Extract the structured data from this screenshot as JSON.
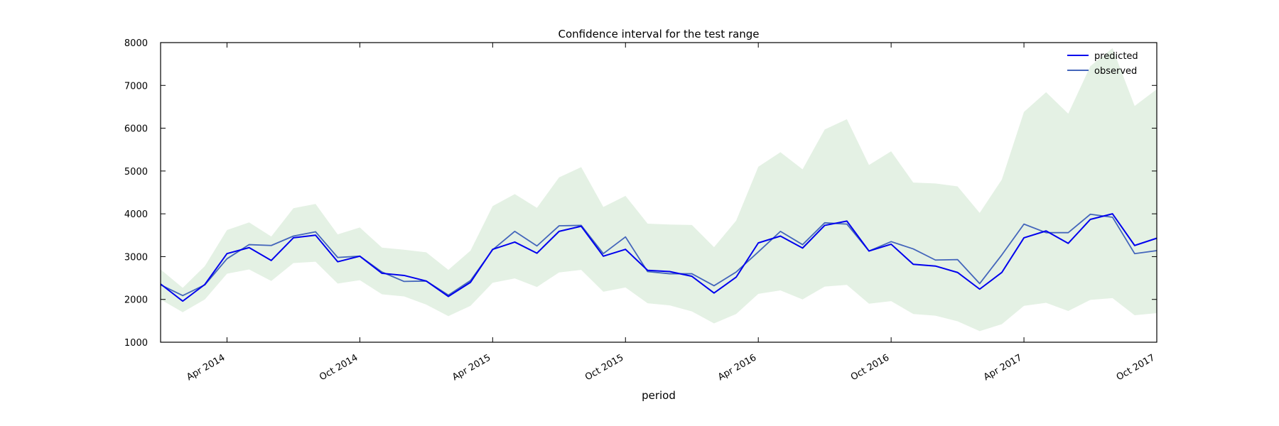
{
  "chart_data": {
    "type": "line",
    "title": "Confidence interval for the test range",
    "xlabel": "period",
    "ylabel": "",
    "ylim": [
      1000,
      8000
    ],
    "yticks": [
      1000,
      2000,
      3000,
      4000,
      5000,
      6000,
      7000,
      8000
    ],
    "xticks": [
      "Apr 2014",
      "Oct 2014",
      "Apr 2015",
      "Oct 2015",
      "Apr 2016",
      "Oct 2016",
      "Apr 2017",
      "Oct 2017"
    ],
    "x": [
      "2014-01",
      "2014-02",
      "2014-03",
      "2014-04",
      "2014-05",
      "2014-06",
      "2014-07",
      "2014-08",
      "2014-09",
      "2014-10",
      "2014-11",
      "2014-12",
      "2015-01",
      "2015-02",
      "2015-03",
      "2015-04",
      "2015-05",
      "2015-06",
      "2015-07",
      "2015-08",
      "2015-09",
      "2015-10",
      "2015-11",
      "2015-12",
      "2016-01",
      "2016-02",
      "2016-03",
      "2016-04",
      "2016-05",
      "2016-06",
      "2016-07",
      "2016-08",
      "2016-09",
      "2016-10",
      "2016-11",
      "2016-12",
      "2017-01",
      "2017-02",
      "2017-03",
      "2017-04",
      "2017-05",
      "2017-06",
      "2017-07",
      "2017-08",
      "2017-09",
      "2017-10"
    ],
    "legend_position": "top-right",
    "grid": false,
    "series": [
      {
        "name": "predicted",
        "color": "#0000ee",
        "values": [
          2360,
          1960,
          2350,
          3070,
          3210,
          2910,
          3440,
          3500,
          2880,
          3010,
          2610,
          2560,
          2430,
          2070,
          2400,
          3170,
          3340,
          3080,
          3590,
          3710,
          3010,
          3170,
          2680,
          2650,
          2540,
          2150,
          2520,
          3320,
          3480,
          3200,
          3730,
          3830,
          3130,
          3290,
          2820,
          2780,
          2630,
          2240,
          2630,
          3440,
          3600,
          3310,
          3870,
          4000,
          3260,
          3430
        ]
      },
      {
        "name": "observed",
        "color": "#4466bb",
        "values": [
          2340,
          2090,
          2340,
          2950,
          3280,
          3260,
          3480,
          3580,
          2980,
          3010,
          2640,
          2420,
          2430,
          2100,
          2440,
          3160,
          3590,
          3250,
          3720,
          3730,
          3070,
          3460,
          2650,
          2600,
          2600,
          2320,
          2640,
          3110,
          3590,
          3280,
          3790,
          3760,
          3130,
          3350,
          3180,
          2920,
          2930,
          2370,
          3040,
          3760,
          3560,
          3560,
          3990,
          3920,
          3070,
          3140
        ]
      }
    ],
    "confidence_band": {
      "color": "#e4f1e4",
      "lower": [
        2000,
        1700,
        2000,
        2600,
        2700,
        2430,
        2850,
        2880,
        2370,
        2450,
        2120,
        2070,
        1880,
        1610,
        1850,
        2390,
        2490,
        2290,
        2630,
        2690,
        2180,
        2280,
        1910,
        1860,
        1720,
        1440,
        1660,
        2130,
        2210,
        2000,
        2300,
        2340,
        1900,
        1960,
        1660,
        1620,
        1490,
        1260,
        1420,
        1850,
        1920,
        1730,
        1990,
        2030,
        1630,
        1680
      ],
      "upper": [
        2700,
        2270,
        2780,
        3620,
        3800,
        3470,
        4130,
        4230,
        3520,
        3680,
        3210,
        3160,
        3100,
        2690,
        3140,
        4180,
        4460,
        4140,
        4850,
        5090,
        4160,
        4420,
        3770,
        3750,
        3740,
        3220,
        3840,
        5100,
        5440,
        5040,
        5970,
        6210,
        5140,
        5460,
        4730,
        4710,
        4640,
        4020,
        4800,
        6380,
        6840,
        6340,
        7450,
        7870,
        6520,
        6910
      ]
    }
  }
}
